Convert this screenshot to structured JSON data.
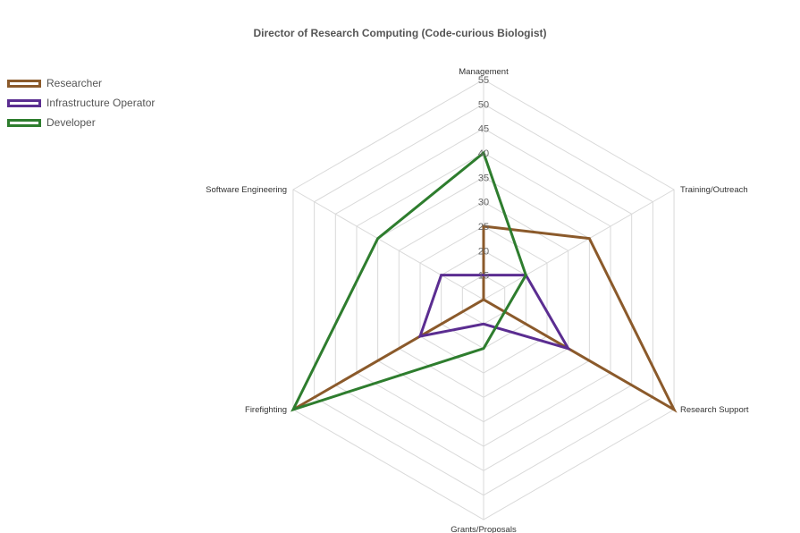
{
  "chart_data": {
    "type": "radar",
    "title": "Director of Research Computing (Code-curious Biologist)",
    "axes": [
      "Management",
      "Training/Outreach",
      "Research Support",
      "Grants/Proposals",
      "Firefighting",
      "Software Engineering"
    ],
    "range": [
      10,
      55
    ],
    "ticks": [
      15,
      20,
      25,
      30,
      35,
      40,
      45,
      50,
      55
    ],
    "grid": true,
    "legend_position": "top-left",
    "series": [
      {
        "name": "Researcher",
        "color": "#8b5a2b",
        "values": [
          25,
          35,
          55,
          10,
          55,
          10
        ]
      },
      {
        "name": "Infrastructure Operator",
        "color": "#5b2d91",
        "values": [
          15,
          20,
          30,
          15,
          25,
          20
        ]
      },
      {
        "name": "Developer",
        "color": "#2e7d2e",
        "values": [
          40,
          20,
          15,
          20,
          55,
          35
        ]
      }
    ]
  }
}
